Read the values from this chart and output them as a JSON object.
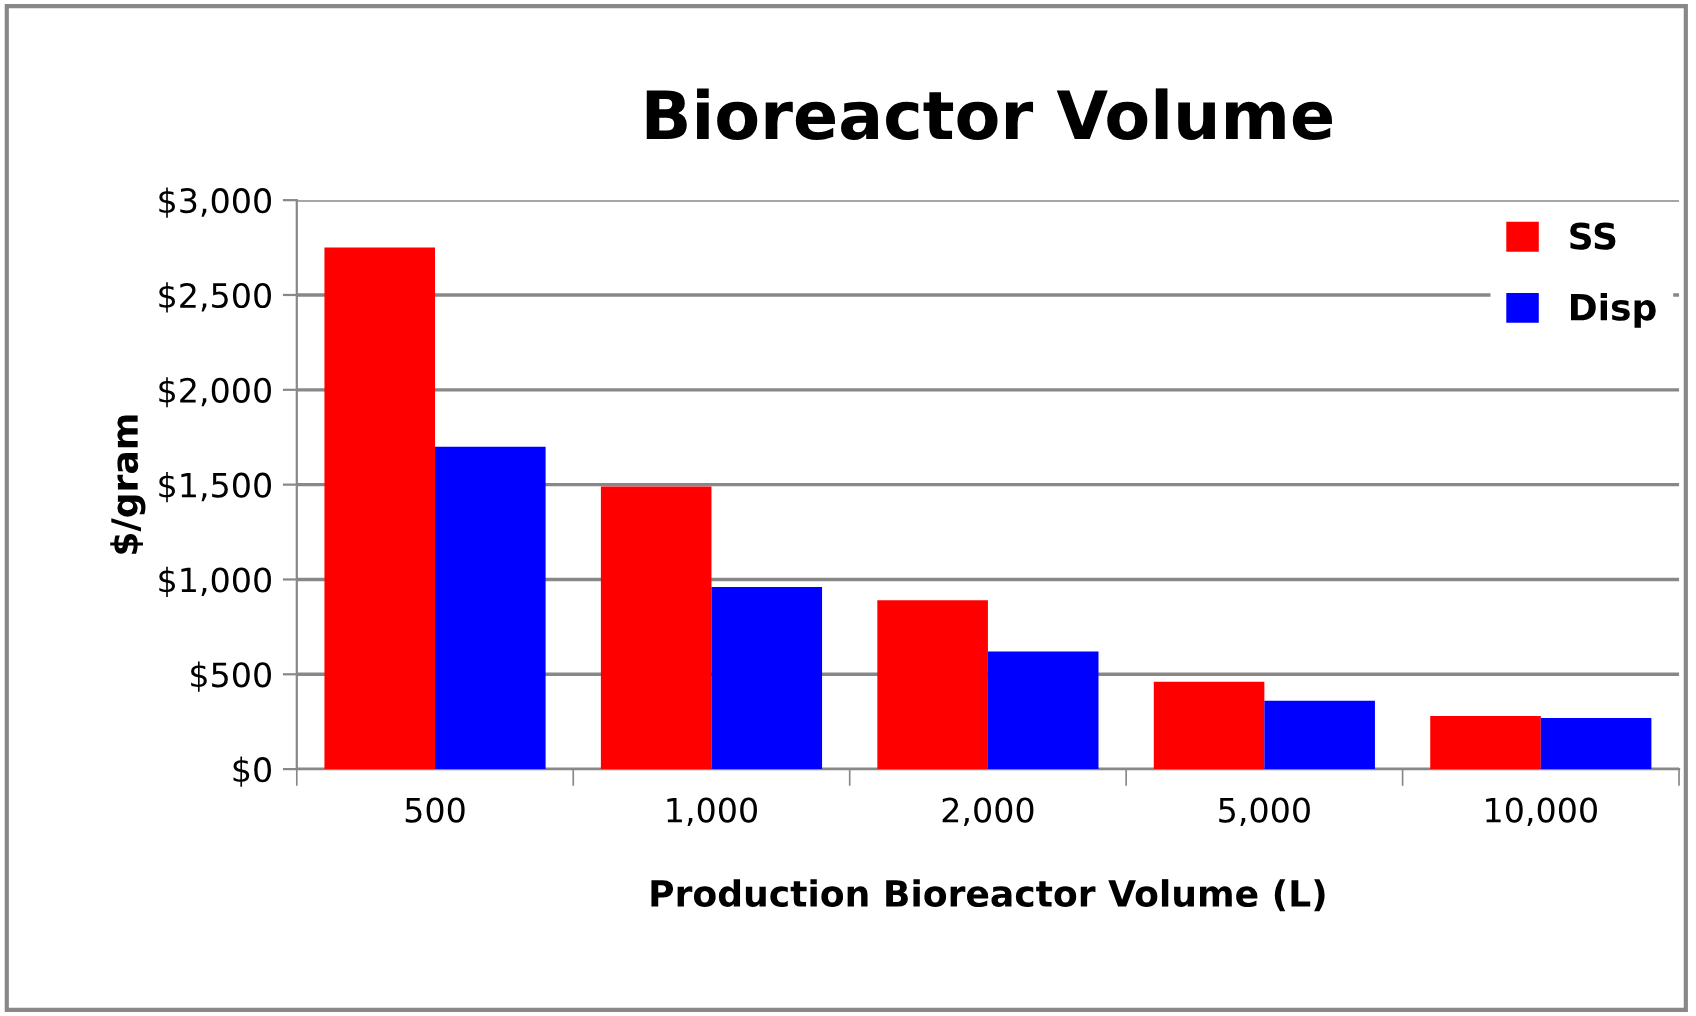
{
  "chart_data": {
    "type": "bar",
    "title": "Bioreactor Volume",
    "xlabel": "Production Bioreactor Volume (L)",
    "ylabel": "$/gram",
    "categories": [
      "500",
      "1,000",
      "2,000",
      "5,000",
      "10,000"
    ],
    "series": [
      {
        "name": "SS",
        "color": "#ff0000",
        "values": [
          2750,
          1490,
          890,
          460,
          280
        ]
      },
      {
        "name": "Disp",
        "color": "#0000ff",
        "values": [
          1700,
          960,
          620,
          360,
          270
        ]
      }
    ],
    "ylim": [
      0,
      3000
    ],
    "yticks": [
      {
        "value": 0,
        "label": "$0"
      },
      {
        "value": 500,
        "label": "$500"
      },
      {
        "value": 1000,
        "label": "$1,000"
      },
      {
        "value": 1500,
        "label": "$1,500"
      },
      {
        "value": 2000,
        "label": "$2,000"
      },
      {
        "value": 2500,
        "label": "$2,500"
      },
      {
        "value": 3000,
        "label": "$3,000"
      }
    ],
    "grid": "y",
    "legend": "top right"
  }
}
